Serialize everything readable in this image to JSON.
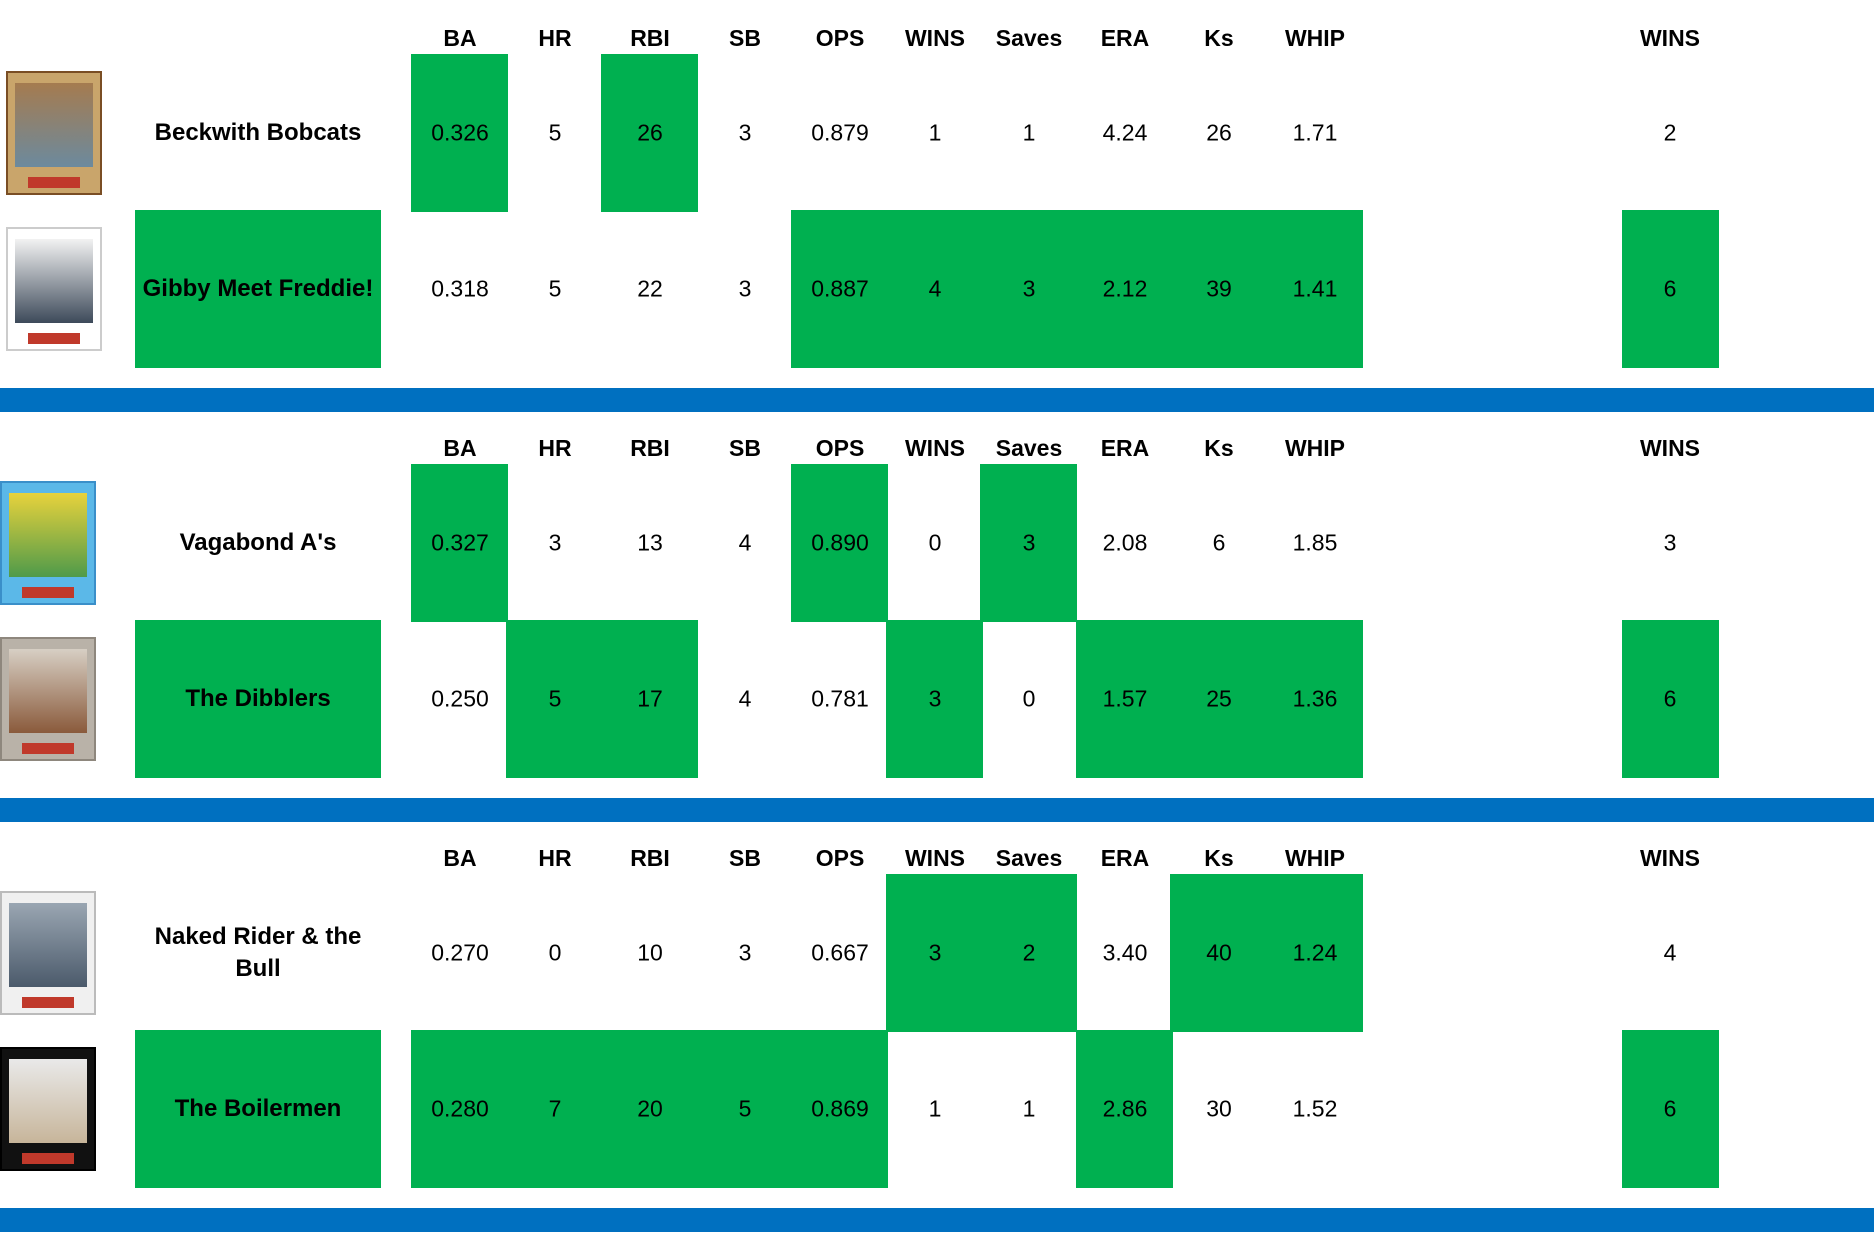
{
  "headers": [
    "BA",
    "HR",
    "RBI",
    "SB",
    "OPS",
    "WINS",
    "Saves",
    "ERA",
    "Ks",
    "WHIP"
  ],
  "total_header": "WINS",
  "highlight_color": "#00b050",
  "divider_color": "#0070c0",
  "matchups": [
    {
      "teams": [
        {
          "name": "Beckwith Bobcats",
          "stats": [
            "0.326",
            "5",
            "26",
            "3",
            "0.879",
            "1",
            "1",
            "4.24",
            "26",
            "1.71"
          ],
          "wins": "2",
          "win_cells": [
            0,
            2
          ],
          "won_total": false,
          "card": {
            "frame": "#c9a56b",
            "bg": "#a57b4f",
            "photo": "#6c8a9e",
            "border": "#7a4e24"
          }
        },
        {
          "name": "Gibby Meet  Freddie!",
          "stats": [
            "0.318",
            "5",
            "22",
            "3",
            "0.887",
            "4",
            "3",
            "2.12",
            "39",
            "1.41"
          ],
          "wins": "6",
          "win_cells": [
            4,
            5,
            6,
            7,
            8,
            9
          ],
          "won_total": true,
          "card": {
            "frame": "#ffffff",
            "bg": "#f2f2f2",
            "photo": "#3d4a5a",
            "border": "#cccccc"
          }
        }
      ]
    },
    {
      "teams": [
        {
          "name": "Vagabond A's",
          "stats": [
            "0.327",
            "3",
            "13",
            "4",
            "0.890",
            "0",
            "3",
            "2.08",
            "6",
            "1.85"
          ],
          "wins": "3",
          "win_cells": [
            0,
            4,
            6
          ],
          "won_total": false,
          "card": {
            "frame": "#5bb8e8",
            "bg": "#e8d23c",
            "photo": "#4f9a4a",
            "border": "#3a8fc9"
          }
        },
        {
          "name": "The Dibblers",
          "stats": [
            "0.250",
            "5",
            "17",
            "4",
            "0.781",
            "3",
            "0",
            "1.57",
            "25",
            "1.36"
          ],
          "wins": "6",
          "win_cells": [
            1,
            2,
            5,
            7,
            8,
            9
          ],
          "won_total": true,
          "card": {
            "frame": "#b9b2a8",
            "bg": "#d7cfc4",
            "photo": "#8a5a3b",
            "border": "#8e877d"
          }
        }
      ]
    },
    {
      "teams": [
        {
          "name": "Naked Rider & the Bull",
          "stats": [
            "0.270",
            "0",
            "10",
            "3",
            "0.667",
            "3",
            "2",
            "3.40",
            "40",
            "1.24"
          ],
          "wins": "4",
          "win_cells": [
            5,
            6,
            8,
            9
          ],
          "won_total": false,
          "card": {
            "frame": "#f0f0f0",
            "bg": "#9aa6b2",
            "photo": "#4b5a6b",
            "border": "#bbbbbb"
          }
        },
        {
          "name": "The Boilermen",
          "stats": [
            "0.280",
            "7",
            "20",
            "5",
            "0.869",
            "1",
            "1",
            "2.86",
            "30",
            "1.52"
          ],
          "wins": "6",
          "win_cells": [
            0,
            1,
            2,
            3,
            4,
            7
          ],
          "won_total": true,
          "card": {
            "frame": "#111111",
            "bg": "#e9e9e9",
            "photo": "#c7b59a",
            "border": "#000000"
          }
        }
      ]
    }
  ]
}
